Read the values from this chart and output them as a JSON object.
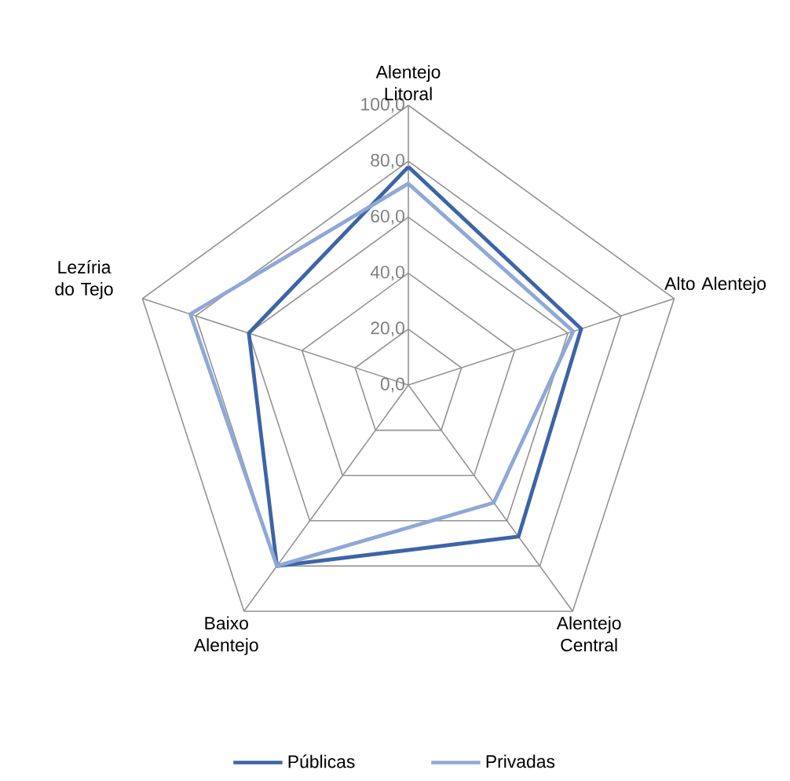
{
  "chart_data": {
    "type": "radar",
    "categories": [
      "Alentejo Litoral",
      "Alto Alentejo",
      "Alentejo Central",
      "Baixo Alentejo",
      "Lezíria do Tejo"
    ],
    "series": [
      {
        "name": "Públicas",
        "color": "#3d64a6",
        "values": [
          78,
          65,
          67,
          80,
          60
        ]
      },
      {
        "name": "Privadas",
        "color": "#8fa8d6",
        "values": [
          72,
          62,
          52,
          80,
          82
        ]
      }
    ],
    "ylim": [
      0,
      100
    ],
    "yticks": [
      {
        "value": 0,
        "label": "0,0"
      },
      {
        "value": 20,
        "label": "20,0"
      },
      {
        "value": 40,
        "label": "40,0"
      },
      {
        "value": 60,
        "label": "60,0"
      },
      {
        "value": 80,
        "label": "80,0"
      },
      {
        "value": 100,
        "label": "100,0"
      }
    ],
    "grid": true,
    "legend": "bottom",
    "marker": "none",
    "line_style": "solid"
  }
}
